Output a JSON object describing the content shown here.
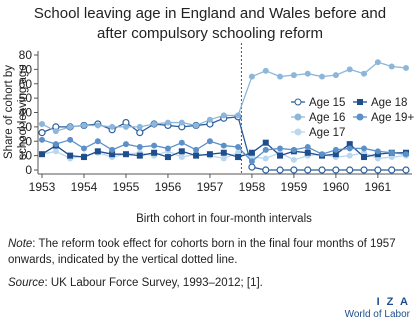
{
  "chart_data": {
    "type": "line",
    "title": [
      "School leaving age in England and Wales before and",
      "after compulsory schooling reform"
    ],
    "ylabel": [
      "Share of cohort by",
      "school leaving age"
    ],
    "xlabel": "Birth cohort in four-month intervals",
    "x": [
      1953,
      1953.33,
      1953.67,
      1954,
      1954.33,
      1954.67,
      1955,
      1955.33,
      1955.67,
      1956,
      1956.33,
      1956.67,
      1957,
      1957.33,
      1957.67,
      1958,
      1958.33,
      1958.67,
      1959,
      1959.33,
      1959.67,
      1960,
      1960.33,
      1960.67,
      1961,
      1961.33,
      1961.67
    ],
    "xlim": [
      1953,
      1961.67
    ],
    "xticks": [
      1953,
      1954,
      1955,
      1956,
      1957,
      1958,
      1959,
      1960,
      1961
    ],
    "ylim": [
      0,
      80
    ],
    "yticks": [
      0,
      10,
      20,
      30,
      40,
      50,
      60,
      70,
      80
    ],
    "reform_line_x": 1957.75,
    "legend_position": "upper right",
    "series": [
      {
        "name": "Age 15",
        "color": "#2b5f9c",
        "marker": "open-circle",
        "values": [
          26,
          30,
          30,
          31,
          32,
          28,
          33,
          26,
          32,
          31,
          30,
          31,
          32,
          36,
          37,
          2,
          0,
          0,
          0,
          0,
          0,
          0,
          0,
          0,
          0,
          0,
          0
        ]
      },
      {
        "name": "Age 16",
        "color": "#8db6db",
        "marker": "circle",
        "values": [
          32,
          27,
          30,
          31,
          31,
          30,
          30,
          30,
          32,
          33,
          33,
          31,
          35,
          38,
          38,
          65,
          69,
          65,
          66,
          67,
          65,
          66,
          70,
          67,
          75,
          72,
          71
        ]
      },
      {
        "name": "Age 17",
        "color": "#b9d7ef",
        "marker": "circle",
        "values": [
          11,
          13,
          8,
          10,
          12,
          9,
          11,
          12,
          10,
          13,
          9,
          11,
          10,
          8,
          12,
          9,
          8,
          12,
          7,
          10,
          11,
          9,
          10,
          12,
          8,
          9,
          10
        ]
      },
      {
        "name": "Age 18",
        "color": "#1f4e8c",
        "marker": "square",
        "values": [
          11,
          17,
          10,
          9,
          13,
          11,
          11,
          10,
          12,
          9,
          13,
          10,
          11,
          12,
          9,
          12,
          19,
          10,
          13,
          12,
          10,
          11,
          18,
          9,
          11,
          12,
          12
        ]
      },
      {
        "name": "Age 19+",
        "color": "#5b90c9",
        "marker": "circle",
        "values": [
          21,
          18,
          21,
          15,
          20,
          14,
          18,
          16,
          17,
          15,
          19,
          14,
          20,
          17,
          16,
          6,
          14,
          15,
          14,
          16,
          11,
          14,
          15,
          15,
          13,
          12,
          11
        ]
      }
    ]
  },
  "note_label": "Note",
  "note": ": The reform took effect for cohorts born in the final four months of 1957 onwards, indicated by the vertical dotted line.",
  "source_label": "Source",
  "source": ": UK Labour Force Survey, 1993–2012; [1].",
  "logo": {
    "mark": "I Z A",
    "text": "World of Labor"
  }
}
